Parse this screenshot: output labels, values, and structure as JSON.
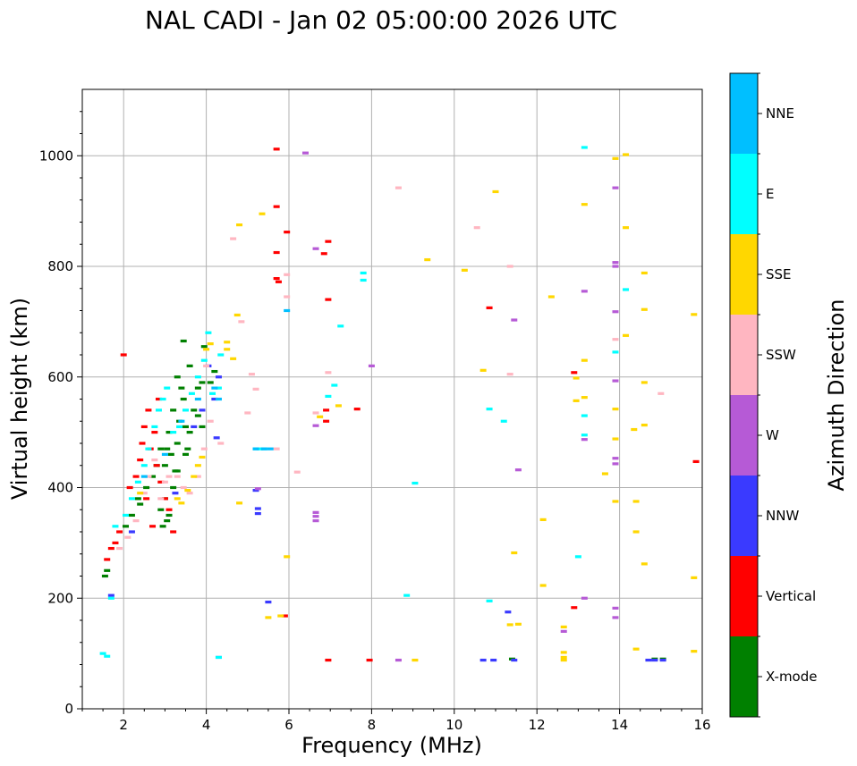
{
  "chart_data": {
    "type": "scatter",
    "title": "NAL CADI - Jan 02 05:00:00 2026 UTC",
    "xlabel": "Frequency (MHz)",
    "ylabel": "Virtual height (km)",
    "xlim": [
      1,
      16
    ],
    "ylim": [
      0,
      1120
    ],
    "xticks": [
      2,
      4,
      6,
      8,
      10,
      12,
      14,
      16
    ],
    "yticks": [
      0,
      200,
      400,
      600,
      800,
      1000
    ],
    "grid": true,
    "colorbar": {
      "label": "Azimuth Direction",
      "categories": [
        "X-mode",
        "Vertical",
        "NNW",
        "W",
        "SSW",
        "SSE",
        "E",
        "NNE"
      ],
      "colors": [
        "#008000",
        "#ff0000",
        "#3a3aff",
        "#b65ad6",
        "#ffb6c1",
        "#ffd700",
        "#00ffff",
        "#00bfff"
      ]
    },
    "series": [
      {
        "name": "X-mode",
        "points": [
          [
            1.55,
            240
          ],
          [
            1.6,
            250
          ],
          [
            2.05,
            330
          ],
          [
            2.2,
            350
          ],
          [
            2.35,
            380
          ],
          [
            2.4,
            370
          ],
          [
            2.55,
            400
          ],
          [
            2.7,
            420
          ],
          [
            2.8,
            440
          ],
          [
            2.9,
            470
          ],
          [
            3.0,
            440
          ],
          [
            3.05,
            470
          ],
          [
            3.1,
            500
          ],
          [
            3.15,
            460
          ],
          [
            3.2,
            540
          ],
          [
            3.25,
            430
          ],
          [
            3.3,
            480
          ],
          [
            3.35,
            520
          ],
          [
            3.4,
            580
          ],
          [
            3.45,
            560
          ],
          [
            3.5,
            510
          ],
          [
            3.55,
            470
          ],
          [
            3.6,
            620
          ],
          [
            3.3,
            600
          ],
          [
            3.45,
            665
          ],
          [
            3.0,
            380
          ],
          [
            3.1,
            350
          ],
          [
            3.2,
            400
          ],
          [
            3.3,
            430
          ],
          [
            3.5,
            460
          ],
          [
            3.6,
            500
          ],
          [
            3.7,
            540
          ],
          [
            3.8,
            530
          ],
          [
            3.9,
            510
          ],
          [
            4.1,
            590
          ],
          [
            4.2,
            610
          ],
          [
            3.8,
            580
          ],
          [
            3.9,
            590
          ],
          [
            3.95,
            655
          ],
          [
            2.9,
            360
          ],
          [
            2.95,
            330
          ],
          [
            3.05,
            340
          ],
          [
            11.4,
            90
          ],
          [
            14.85,
            90
          ],
          [
            15.05,
            90
          ]
        ]
      },
      {
        "name": "Vertical",
        "points": [
          [
            1.6,
            270
          ],
          [
            1.7,
            290
          ],
          [
            1.8,
            300
          ],
          [
            1.9,
            320
          ],
          [
            2.0,
            640
          ],
          [
            2.15,
            400
          ],
          [
            2.3,
            420
          ],
          [
            2.45,
            480
          ],
          [
            2.5,
            510
          ],
          [
            2.6,
            540
          ],
          [
            2.65,
            470
          ],
          [
            2.75,
            500
          ],
          [
            2.8,
            440
          ],
          [
            2.9,
            410
          ],
          [
            3.0,
            380
          ],
          [
            3.1,
            360
          ],
          [
            3.2,
            320
          ],
          [
            2.4,
            450
          ],
          [
            2.55,
            380
          ],
          [
            2.7,
            330
          ],
          [
            2.85,
            560
          ],
          [
            5.7,
            1012
          ],
          [
            5.7,
            908
          ],
          [
            5.95,
            862
          ],
          [
            5.7,
            825
          ],
          [
            5.75,
            772
          ],
          [
            5.7,
            778
          ],
          [
            6.95,
            845
          ],
          [
            6.85,
            823
          ],
          [
            6.95,
            740
          ],
          [
            6.9,
            540
          ],
          [
            6.9,
            520
          ],
          [
            7.65,
            542
          ],
          [
            5.9,
            168
          ],
          [
            6.95,
            88
          ],
          [
            7.95,
            88
          ],
          [
            10.85,
            725
          ],
          [
            12.9,
            608
          ],
          [
            12.9,
            183
          ],
          [
            15.85,
            447
          ]
        ]
      },
      {
        "name": "NNW",
        "points": [
          [
            1.7,
            205
          ],
          [
            2.2,
            320
          ],
          [
            3.25,
            390
          ],
          [
            3.7,
            510
          ],
          [
            3.9,
            540
          ],
          [
            4.05,
            620
          ],
          [
            4.2,
            560
          ],
          [
            4.25,
            490
          ],
          [
            4.3,
            600
          ],
          [
            5.2,
            395
          ],
          [
            5.25,
            362
          ],
          [
            5.25,
            353
          ],
          [
            4.3,
            93
          ],
          [
            5.5,
            193
          ],
          [
            10.7,
            88
          ],
          [
            10.95,
            88
          ],
          [
            11.3,
            175
          ],
          [
            11.45,
            88
          ],
          [
            14.7,
            88
          ],
          [
            14.85,
            88
          ],
          [
            15.05,
            88
          ]
        ]
      },
      {
        "name": "W",
        "points": [
          [
            5.25,
            398
          ],
          [
            6.65,
            832
          ],
          [
            6.65,
            355
          ],
          [
            6.65,
            348
          ],
          [
            6.65,
            340
          ],
          [
            6.65,
            512
          ],
          [
            6.4,
            1005
          ],
          [
            8.0,
            620
          ],
          [
            8.65,
            88
          ],
          [
            11.55,
            432
          ],
          [
            11.45,
            703
          ],
          [
            12.65,
            140
          ],
          [
            13.15,
            755
          ],
          [
            13.15,
            200
          ],
          [
            13.15,
            487
          ],
          [
            13.9,
            942
          ],
          [
            13.9,
            807
          ],
          [
            13.9,
            800
          ],
          [
            13.9,
            718
          ],
          [
            13.9,
            593
          ],
          [
            13.9,
            453
          ],
          [
            13.9,
            443
          ],
          [
            13.9,
            182
          ],
          [
            13.9,
            165
          ]
        ]
      },
      {
        "name": "SSW",
        "points": [
          [
            1.9,
            290
          ],
          [
            2.1,
            310
          ],
          [
            2.3,
            340
          ],
          [
            2.5,
            390
          ],
          [
            2.6,
            420
          ],
          [
            2.75,
            450
          ],
          [
            2.9,
            380
          ],
          [
            3.0,
            410
          ],
          [
            3.1,
            420
          ],
          [
            3.3,
            420
          ],
          [
            3.45,
            400
          ],
          [
            3.6,
            390
          ],
          [
            3.8,
            420
          ],
          [
            3.95,
            470
          ],
          [
            4.0,
            620
          ],
          [
            4.1,
            520
          ],
          [
            4.35,
            480
          ],
          [
            4.65,
            850
          ],
          [
            4.85,
            700
          ],
          [
            5.0,
            535
          ],
          [
            5.1,
            605
          ],
          [
            5.2,
            578
          ],
          [
            5.7,
            470
          ],
          [
            5.95,
            785
          ],
          [
            5.95,
            745
          ],
          [
            6.2,
            428
          ],
          [
            6.65,
            535
          ],
          [
            6.95,
            608
          ],
          [
            8.65,
            942
          ],
          [
            10.55,
            870
          ],
          [
            11.35,
            800
          ],
          [
            11.35,
            605
          ],
          [
            13.9,
            668
          ],
          [
            15.0,
            570
          ]
        ]
      },
      {
        "name": "SSE",
        "points": [
          [
            2.4,
            390
          ],
          [
            3.3,
            380
          ],
          [
            3.4,
            372
          ],
          [
            3.55,
            395
          ],
          [
            3.7,
            420
          ],
          [
            3.8,
            440
          ],
          [
            3.9,
            455
          ],
          [
            4.0,
            650
          ],
          [
            4.1,
            660
          ],
          [
            4.5,
            663
          ],
          [
            4.5,
            650
          ],
          [
            4.65,
            633
          ],
          [
            4.75,
            712
          ],
          [
            4.8,
            875
          ],
          [
            4.8,
            372
          ],
          [
            5.35,
            895
          ],
          [
            5.95,
            275
          ],
          [
            5.5,
            165
          ],
          [
            5.8,
            168
          ],
          [
            6.75,
            528
          ],
          [
            7.2,
            548
          ],
          [
            9.05,
            88
          ],
          [
            9.35,
            812
          ],
          [
            10.25,
            793
          ],
          [
            10.7,
            612
          ],
          [
            11.0,
            935
          ],
          [
            11.45,
            282
          ],
          [
            11.35,
            152
          ],
          [
            11.55,
            153
          ],
          [
            12.15,
            342
          ],
          [
            12.15,
            223
          ],
          [
            12.35,
            745
          ],
          [
            12.65,
            148
          ],
          [
            12.65,
            102
          ],
          [
            12.65,
            88
          ],
          [
            12.65,
            93
          ],
          [
            12.95,
            598
          ],
          [
            12.95,
            557
          ],
          [
            13.15,
            912
          ],
          [
            13.15,
            630
          ],
          [
            13.15,
            563
          ],
          [
            13.9,
            995
          ],
          [
            14.15,
            1002
          ],
          [
            14.15,
            870
          ],
          [
            14.15,
            675
          ],
          [
            13.9,
            542
          ],
          [
            13.9,
            488
          ],
          [
            13.9,
            375
          ],
          [
            13.65,
            425
          ],
          [
            14.35,
            505
          ],
          [
            14.4,
            375
          ],
          [
            14.4,
            320
          ],
          [
            14.4,
            108
          ],
          [
            14.6,
            788
          ],
          [
            14.6,
            722
          ],
          [
            14.6,
            590
          ],
          [
            14.6,
            513
          ],
          [
            14.6,
            262
          ],
          [
            15.8,
            713
          ],
          [
            15.8,
            237
          ],
          [
            15.8,
            104
          ]
        ]
      },
      {
        "name": "E",
        "points": [
          [
            1.5,
            100
          ],
          [
            1.6,
            95
          ],
          [
            1.7,
            200
          ],
          [
            1.8,
            330
          ],
          [
            2.05,
            350
          ],
          [
            2.2,
            380
          ],
          [
            2.35,
            410
          ],
          [
            2.5,
            440
          ],
          [
            2.6,
            470
          ],
          [
            2.75,
            510
          ],
          [
            2.85,
            540
          ],
          [
            2.95,
            560
          ],
          [
            3.05,
            580
          ],
          [
            3.2,
            500
          ],
          [
            3.35,
            510
          ],
          [
            3.5,
            540
          ],
          [
            3.65,
            570
          ],
          [
            3.8,
            600
          ],
          [
            3.95,
            630
          ],
          [
            4.05,
            680
          ],
          [
            4.15,
            570
          ],
          [
            4.3,
            580
          ],
          [
            4.35,
            640
          ],
          [
            4.3,
            93
          ],
          [
            5.4,
            470
          ],
          [
            5.2,
            470
          ],
          [
            5.3,
            470
          ],
          [
            6.95,
            565
          ],
          [
            7.1,
            585
          ],
          [
            7.25,
            692
          ],
          [
            7.8,
            788
          ],
          [
            7.8,
            775
          ],
          [
            9.05,
            408
          ],
          [
            8.85,
            205
          ],
          [
            10.85,
            542
          ],
          [
            10.85,
            195
          ],
          [
            11.2,
            520
          ],
          [
            13.15,
            1015
          ],
          [
            13.15,
            530
          ],
          [
            13.15,
            495
          ],
          [
            13.0,
            275
          ],
          [
            13.9,
            645
          ],
          [
            14.15,
            758
          ]
        ]
      },
      {
        "name": "NNE",
        "points": [
          [
            2.5,
            420
          ],
          [
            3.0,
            460
          ],
          [
            3.4,
            520
          ],
          [
            3.8,
            560
          ],
          [
            4.2,
            580
          ],
          [
            4.3,
            560
          ],
          [
            5.2,
            470
          ],
          [
            5.4,
            470
          ],
          [
            5.55,
            470
          ],
          [
            5.95,
            720
          ]
        ]
      }
    ]
  }
}
